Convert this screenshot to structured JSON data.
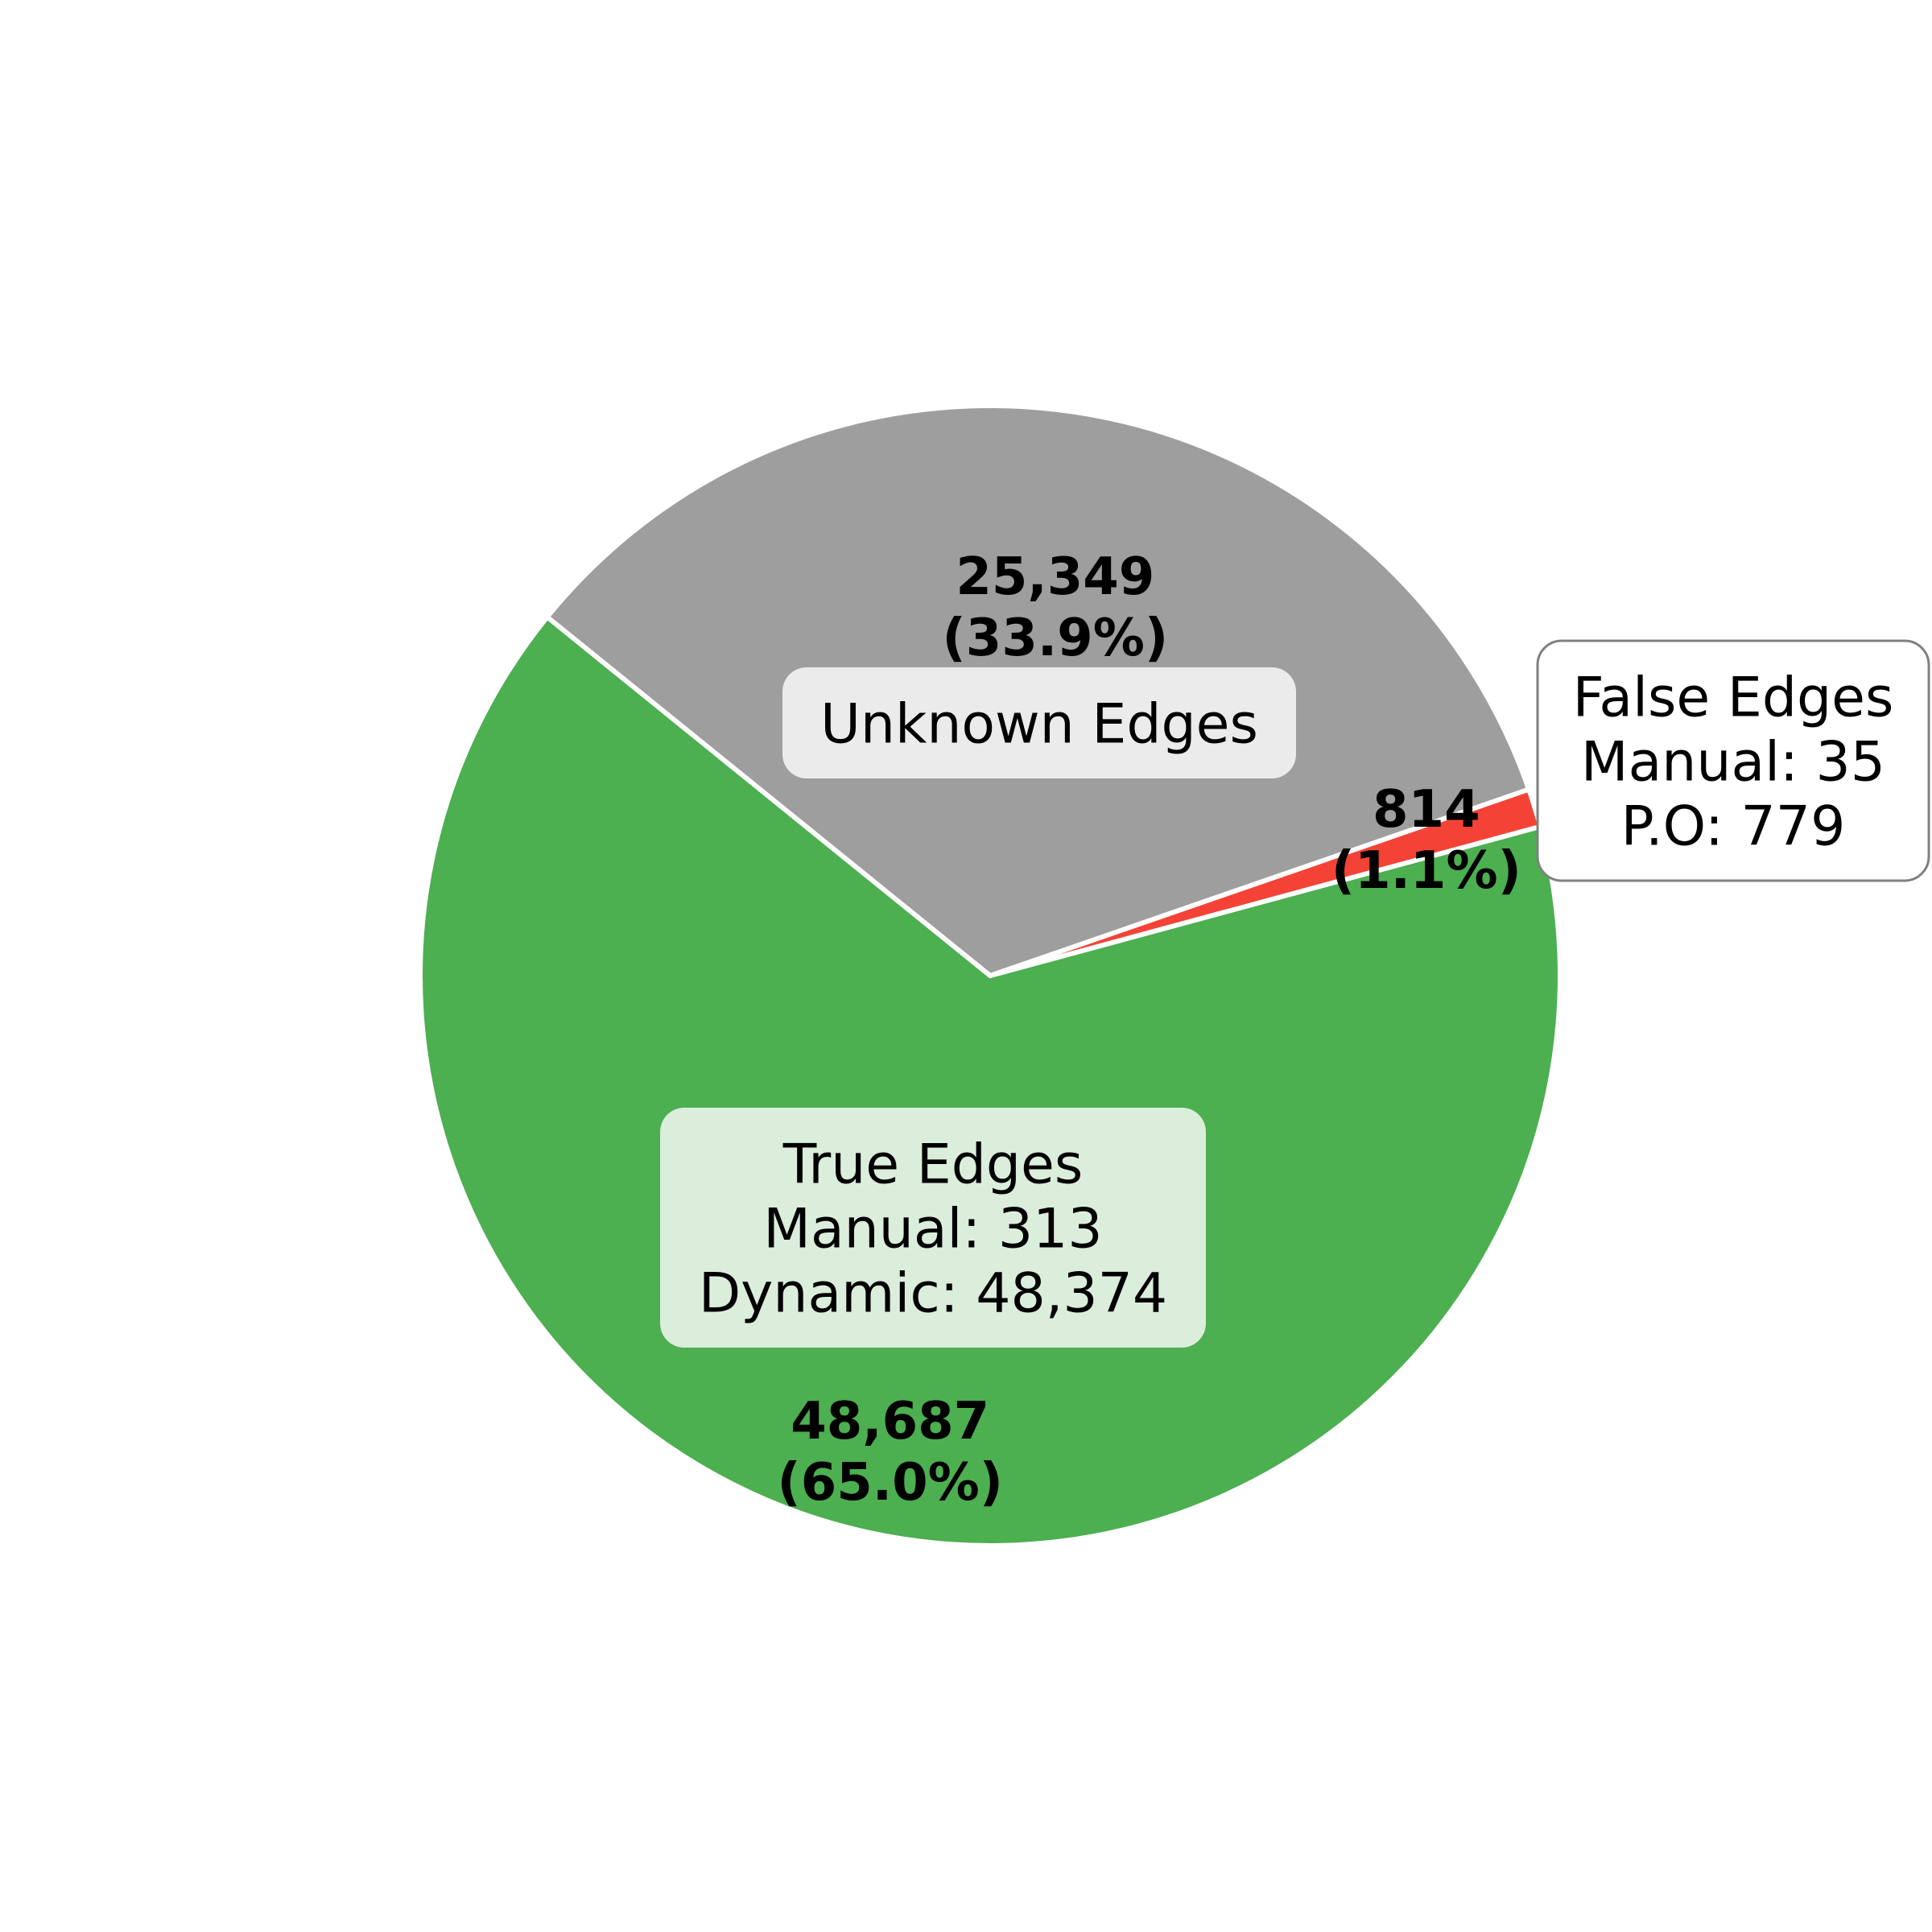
{
  "chart_data": {
    "type": "pie",
    "start_angle_deg": 141,
    "direction": "counterclockwise",
    "slices": [
      {
        "key": "true",
        "value": 48687,
        "value_label": "48,687",
        "percent_label": "(65.0%)",
        "color": "#4caf50",
        "box_lines": [
          "True Edges",
          "Manual: 313",
          "Dynamic: 48,374"
        ],
        "box_color": "#dbeddb",
        "box_border": false
      },
      {
        "key": "false",
        "value": 814,
        "value_label": "814",
        "percent_label": "(1.1%)",
        "color": "#f44336",
        "box_lines": [
          "False Edges",
          "Manual: 35",
          "P.O: 779"
        ],
        "box_color": "#ffffff",
        "box_border": true
      },
      {
        "key": "unknown",
        "value": 25349,
        "value_label": "25,349",
        "percent_label": "(33.9%)",
        "color": "#9e9e9e",
        "box_lines": [
          "Unknown Edges"
        ],
        "box_color": "#ebebeb",
        "box_border": false
      }
    ],
    "edge_color": "#ffffff"
  }
}
